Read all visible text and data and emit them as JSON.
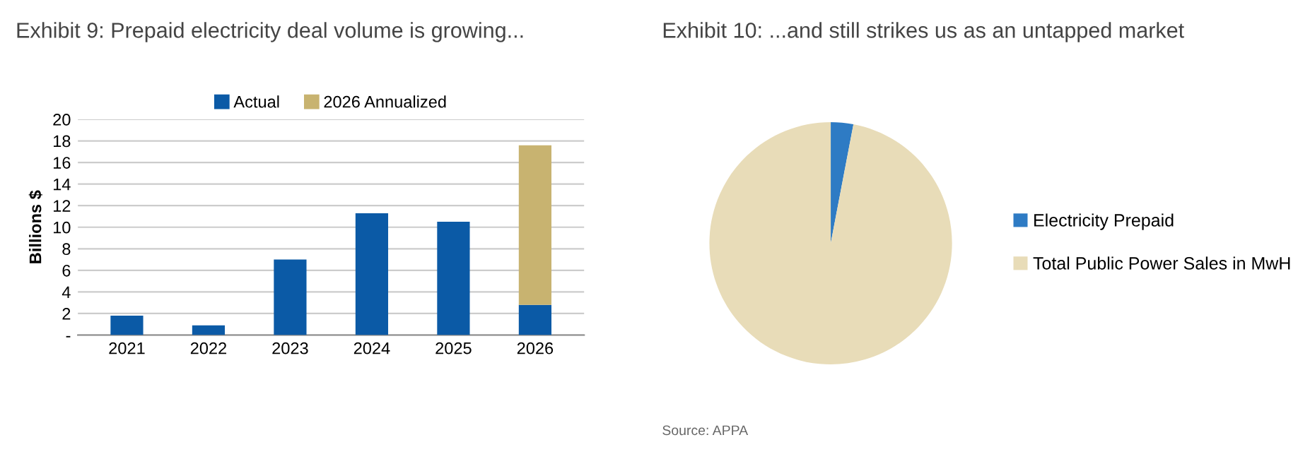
{
  "chart_data": [
    {
      "type": "bar",
      "title": "Exhibit 9: Prepaid electricity deal volume is growing...",
      "ylabel": "Billions $",
      "categories": [
        "2021",
        "2022",
        "2023",
        "2024",
        "2025",
        "2026"
      ],
      "stacked": true,
      "series": [
        {
          "name": "Actual",
          "color": "#0b5aa6",
          "values": [
            1.8,
            0.9,
            7.0,
            11.3,
            10.5,
            2.8
          ]
        },
        {
          "name": "2026 Annualized",
          "color": "#c8b370",
          "values": [
            null,
            null,
            null,
            null,
            null,
            14.8
          ]
        }
      ],
      "ylim": [
        0,
        20
      ],
      "yticks": [
        {
          "value": 0,
          "label": "-"
        },
        2,
        4,
        6,
        8,
        10,
        12,
        14,
        16,
        18,
        20
      ],
      "grid": "y",
      "legend": "top"
    },
    {
      "type": "pie",
      "title": "Exhibit 10: ...and still strikes us as an untapped market",
      "categories": [
        "Electricity Prepaid",
        "Total Public Power Sales in MwH"
      ],
      "values": [
        3,
        97
      ],
      "colors": [
        "#2e7bc4",
        "#e8dcb8"
      ],
      "legend": "right",
      "annotations": [
        "Source: APPA"
      ]
    }
  ]
}
